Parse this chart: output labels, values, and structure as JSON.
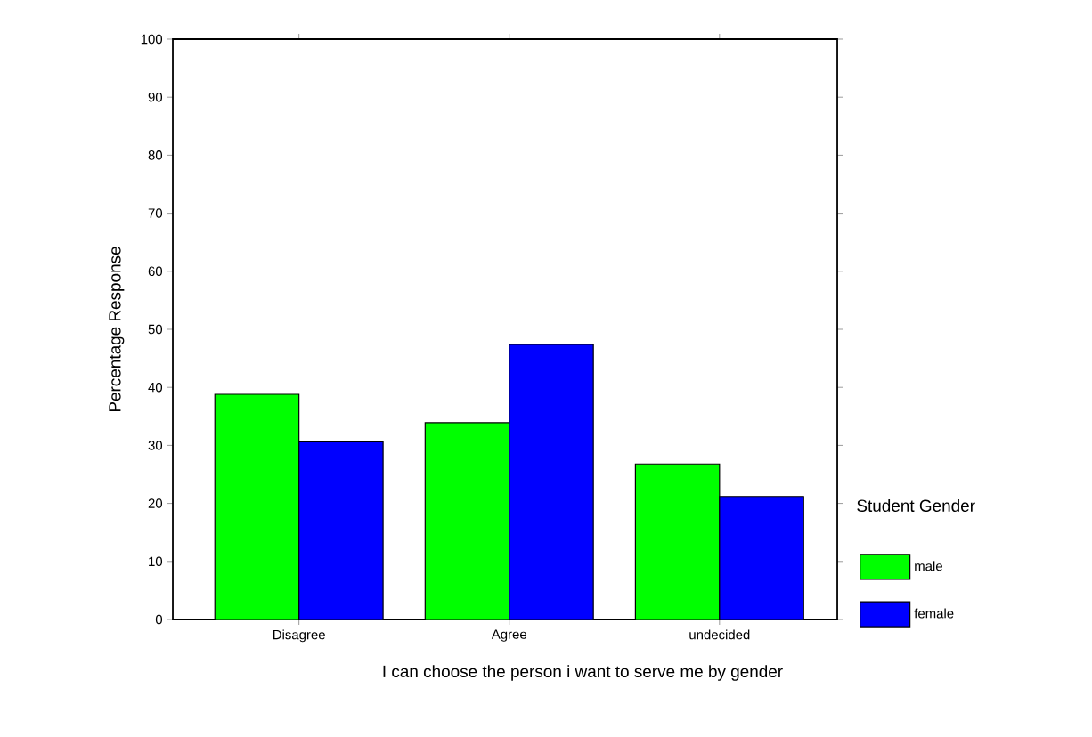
{
  "chart_data": {
    "type": "bar",
    "categories": [
      "Disagree",
      "Agree",
      "undecided"
    ],
    "series": [
      {
        "name": "male",
        "color": "#00ff00",
        "values": [
          38.8,
          33.9,
          26.8
        ]
      },
      {
        "name": "female",
        "color": "#0000ff",
        "values": [
          30.6,
          47.4,
          21.2
        ]
      }
    ],
    "xlabel": "I can choose the person i want to serve me by gender",
    "ylabel": "Percentage Response",
    "legend_title": "Student Gender",
    "ylim": [
      0,
      100
    ],
    "yticks": [
      0,
      10,
      20,
      30,
      40,
      50,
      60,
      70,
      80,
      90,
      100
    ],
    "grid": false,
    "legend": "right"
  }
}
